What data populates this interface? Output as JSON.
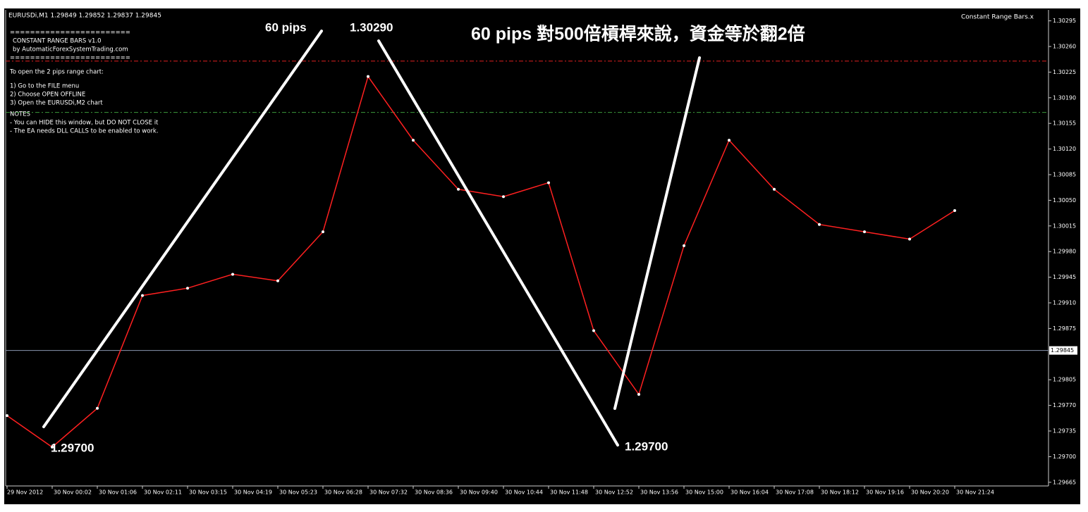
{
  "chart_data": {
    "type": "line",
    "header": "EURUSDi,M1  1.29849 1.29852 1.29837 1.29845",
    "indicator_name": "Constant Range Bars.x",
    "info_panel": [
      "========================",
      "CONSTANT RANGE BARS v1.0",
      "by AutomaticForexSystemTrading.com",
      "========================",
      "To open the 2 pips range chart:",
      "1) Go to the FILE menu",
      "2) Choose OPEN OFFLINE",
      "3) Open the EURUSDi,M2 chart",
      "NOTES",
      " - You can HIDE this window, but DO NOT CLOSE it",
      " - The EA needs DLL CALLS to be enabled to work."
    ],
    "title": "60 pips 對500倍槓桿來說，資金等於翻2倍",
    "annotations": [
      "60 pips",
      "1.30290",
      "1.29700",
      "1.29700"
    ],
    "categories": [
      "29 Nov 2012",
      "30 Nov 00:02",
      "30 Nov 01:06",
      "30 Nov 02:11",
      "30 Nov 03:15",
      "30 Nov 04:19",
      "30 Nov 05:23",
      "30 Nov 06:28",
      "30 Nov 07:32",
      "30 Nov 08:36",
      "30 Nov 09:40",
      "30 Nov 10:44",
      "30 Nov 11:48",
      "30 Nov 12:52",
      "30 Nov 13:56",
      "30 Nov 15:00",
      "30 Nov 16:04",
      "30 Nov 17:08",
      "30 Nov 18:12",
      "30 Nov 19:16",
      "30 Nov 20:20",
      "30 Nov 21:24"
    ],
    "series": [
      {
        "name": "EURUSDi",
        "color": "#ff2020",
        "values": [
          1.29756,
          1.29713,
          1.29766,
          1.2992,
          1.2993,
          1.29949,
          1.2994,
          1.30007,
          1.30219,
          1.30132,
          1.30065,
          1.30055,
          1.30074,
          1.29872,
          1.29785,
          1.29988,
          1.30132,
          1.30065,
          1.30017,
          1.30007,
          1.29997,
          1.30036
        ]
      }
    ],
    "ylim": [
      1.2966,
      1.3031
    ],
    "yticks": [
      1.30295,
      {
        "value": 1.3026,
        "label": "1.30260"
      },
      1.30225,
      {
        "value": 1.3019,
        "label": "1.30190"
      },
      1.30155,
      {
        "value": 1.3012,
        "label": "1.30120"
      },
      1.30085,
      {
        "value": 1.3005,
        "label": "1.30050"
      },
      1.30015,
      {
        "value": 1.2998,
        "label": "1.29980"
      },
      1.29945,
      {
        "value": 1.2991,
        "label": "1.29910"
      },
      1.29875,
      1.29805,
      {
        "value": 1.2977,
        "label": "1.29770"
      },
      1.29735,
      {
        "value": 1.297,
        "label": "1.29700"
      },
      1.29665
    ],
    "levels": [
      {
        "value": 1.3024,
        "color": "#e02020"
      },
      {
        "value": 1.3017,
        "color": "#3c9a3c"
      }
    ],
    "current_price": 1.29845,
    "current_price_color": "#8a96b0"
  }
}
